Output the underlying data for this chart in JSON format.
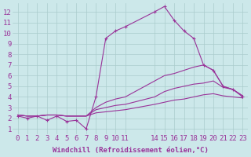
{
  "background_color": "#cce8ea",
  "grid_color": "#aacccc",
  "line_color": "#993399",
  "xlabel": "Windchill (Refroidissement éolien,°C)",
  "xlim": [
    -0.5,
    23.5
  ],
  "ylim": [
    0.5,
    12.8
  ],
  "yticks": [
    1,
    2,
    3,
    4,
    5,
    6,
    7,
    8,
    9,
    10,
    11,
    12
  ],
  "tick_fontsize": 6.5,
  "label_fontsize": 6.5,
  "series_marked_x": [
    0,
    1,
    2,
    3,
    4,
    5,
    6,
    7,
    8,
    9,
    10,
    11,
    14,
    15,
    16,
    17,
    18,
    19,
    20,
    21,
    22,
    23
  ],
  "series_marked_y": [
    2.2,
    2.0,
    2.2,
    1.8,
    2.2,
    1.7,
    1.8,
    1.0,
    4.0,
    9.5,
    10.2,
    10.6,
    12.0,
    12.5,
    11.2,
    10.2,
    9.5,
    7.0,
    6.5,
    5.0,
    4.7,
    4.0
  ],
  "series2_x": [
    0,
    1,
    2,
    3,
    4,
    5,
    6,
    7,
    8,
    9,
    10,
    11,
    14,
    15,
    16,
    17,
    18,
    19,
    20,
    21,
    22,
    23
  ],
  "series2_y": [
    2.3,
    2.2,
    2.2,
    2.3,
    2.3,
    2.2,
    2.2,
    2.2,
    3.0,
    3.5,
    3.8,
    4.0,
    5.5,
    6.0,
    6.2,
    6.5,
    6.8,
    7.0,
    6.5,
    5.0,
    4.7,
    4.1
  ],
  "series3_x": [
    0,
    1,
    2,
    3,
    4,
    5,
    6,
    7,
    8,
    9,
    10,
    11,
    14,
    15,
    16,
    17,
    18,
    19,
    20,
    21,
    22,
    23
  ],
  "series3_y": [
    2.3,
    2.2,
    2.2,
    2.3,
    2.3,
    2.2,
    2.2,
    2.2,
    2.8,
    3.0,
    3.2,
    3.3,
    4.0,
    4.5,
    4.8,
    5.0,
    5.2,
    5.3,
    5.5,
    4.9,
    4.7,
    4.1
  ],
  "series4_x": [
    0,
    1,
    2,
    3,
    4,
    5,
    6,
    7,
    8,
    9,
    10,
    11,
    14,
    15,
    16,
    17,
    18,
    19,
    20,
    21,
    22,
    23
  ],
  "series4_y": [
    2.3,
    2.2,
    2.2,
    2.3,
    2.3,
    2.2,
    2.2,
    2.2,
    2.5,
    2.6,
    2.7,
    2.8,
    3.3,
    3.5,
    3.7,
    3.8,
    4.0,
    4.2,
    4.3,
    4.1,
    4.0,
    3.9
  ]
}
